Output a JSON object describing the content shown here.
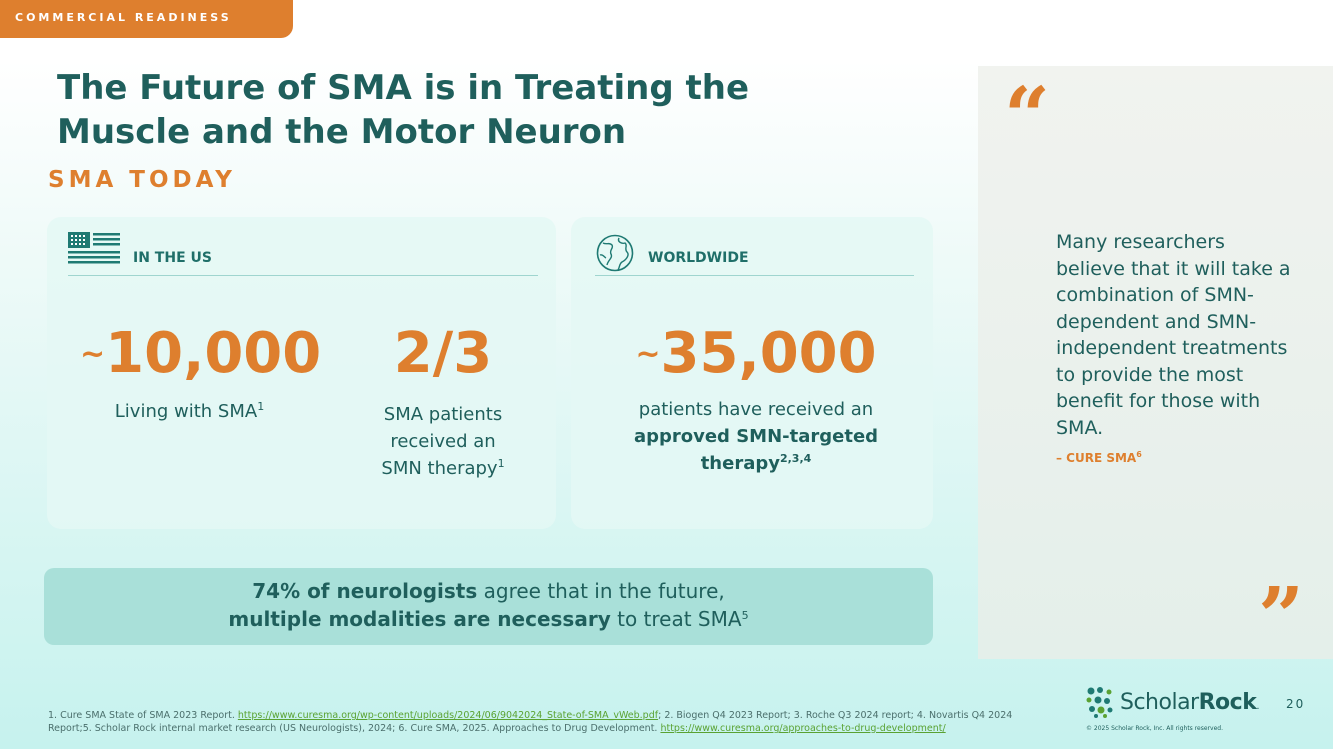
{
  "section_tab": "COMMERCIAL READINESS",
  "title_line1": "The Future of SMA is in Treating the",
  "title_line2": "Muscle and the Motor Neuron",
  "subtitle": "SMA TODAY",
  "us_card": {
    "header": "IN THE US",
    "stat1": {
      "prefix": "~",
      "value": "10,000",
      "desc": "Living with SMA",
      "ref": "1"
    },
    "stat2": {
      "value": "2/3",
      "desc_line1": "SMA patients",
      "desc_line2": "received an",
      "desc_line3": "SMN therapy",
      "ref": "1"
    }
  },
  "ww_card": {
    "header": "WORLDWIDE",
    "stat": {
      "prefix": "~",
      "value": "35,000",
      "desc_line1": "patients have received an",
      "desc_bold1": "approved SMN-targeted",
      "desc_bold2": "therapy",
      "ref": "2,3,4"
    }
  },
  "banner": {
    "bold1": "74% of neurologists",
    "text1": " agree that in the future,",
    "bold2": "multiple modalities are necessary",
    "text2": " to treat SMA",
    "ref": "5"
  },
  "quote": {
    "open_mark": "“",
    "close_mark": "”",
    "text": "Many researchers believe that it will take a combination of SMN-dependent and SMN-independent treatments to provide the most benefit for those with SMA.",
    "attribution": "– CURE SMA",
    "attribution_ref": "6"
  },
  "footnotes": {
    "part1": "1. Cure SMA State of SMA 2023 Report. ",
    "link1": "https://www.curesma.org/wp-content/uploads/2024/06/9042024_State-of-SMA_vWeb.pdf",
    "part2": "; 2. Biogen Q4 2023 Report; 3. Roche Q3 2024 report; 4. Novartis Q4 2024 Report;5. Scholar Rock internal market research (US Neurologists), 2024; 6. Cure SMA, 2025. Approaches to Drug Development. ",
    "link2": "https://www.curesma.org/approaches-to-drug-development/"
  },
  "logo": {
    "scholar": "Scholar",
    "rock": "Rock",
    "mark": "."
  },
  "page_number": "20",
  "copyright": "© 2025 Scholar Rock, Inc. All rights reserved.",
  "colors": {
    "accent_orange": "#de7f2e",
    "teal_text": "#1f5f5c",
    "link_green": "#5aa232"
  }
}
